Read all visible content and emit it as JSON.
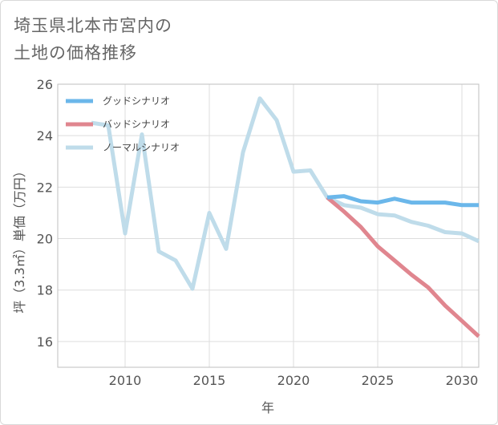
{
  "title": {
    "line1": "埼玉県北本市宮内の",
    "line2": "土地の価格推移"
  },
  "chart_data": {
    "type": "line",
    "title": "埼玉県北本市宮内の土地の価格推移",
    "xlabel": "年",
    "ylabel": "坪（3.3㎡）単価（万円）",
    "xlim": [
      2006,
      2031
    ],
    "ylim": [
      15,
      26
    ],
    "xticks": [
      2010,
      2015,
      2020,
      2025,
      2030
    ],
    "yticks": [
      16,
      18,
      20,
      22,
      24,
      26
    ],
    "grid": true,
    "legend_position": "top-left",
    "series": [
      {
        "name": "グッドシナリオ",
        "color": "#6bb7ea",
        "x": [
          2022,
          2023,
          2024,
          2025,
          2026,
          2027,
          2028,
          2029,
          2030,
          2031
        ],
        "values": [
          21.6,
          21.65,
          21.45,
          21.4,
          21.55,
          21.4,
          21.4,
          21.4,
          21.3,
          21.3
        ]
      },
      {
        "name": "バッドシナリオ",
        "color": "#e0868f",
        "x": [
          2022,
          2023,
          2024,
          2025,
          2026,
          2027,
          2028,
          2029,
          2030,
          2031
        ],
        "values": [
          21.6,
          21.05,
          20.45,
          19.7,
          19.15,
          18.6,
          18.1,
          17.4,
          16.8,
          16.2
        ]
      },
      {
        "name": "ノーマルシナリオ",
        "color": "#bfdcea",
        "x": [
          2008,
          2009,
          2010,
          2011,
          2012,
          2013,
          2014,
          2015,
          2016,
          2017,
          2018,
          2019,
          2020,
          2021,
          2022,
          2023,
          2024,
          2025,
          2026,
          2027,
          2028,
          2029,
          2030,
          2031
        ],
        "values": [
          24.5,
          24.4,
          20.2,
          24.05,
          19.5,
          19.15,
          18.05,
          21.0,
          19.6,
          23.35,
          25.45,
          24.6,
          22.6,
          22.65,
          21.6,
          21.3,
          21.2,
          20.95,
          20.9,
          20.65,
          20.5,
          20.25,
          20.2,
          19.9
        ]
      }
    ]
  }
}
